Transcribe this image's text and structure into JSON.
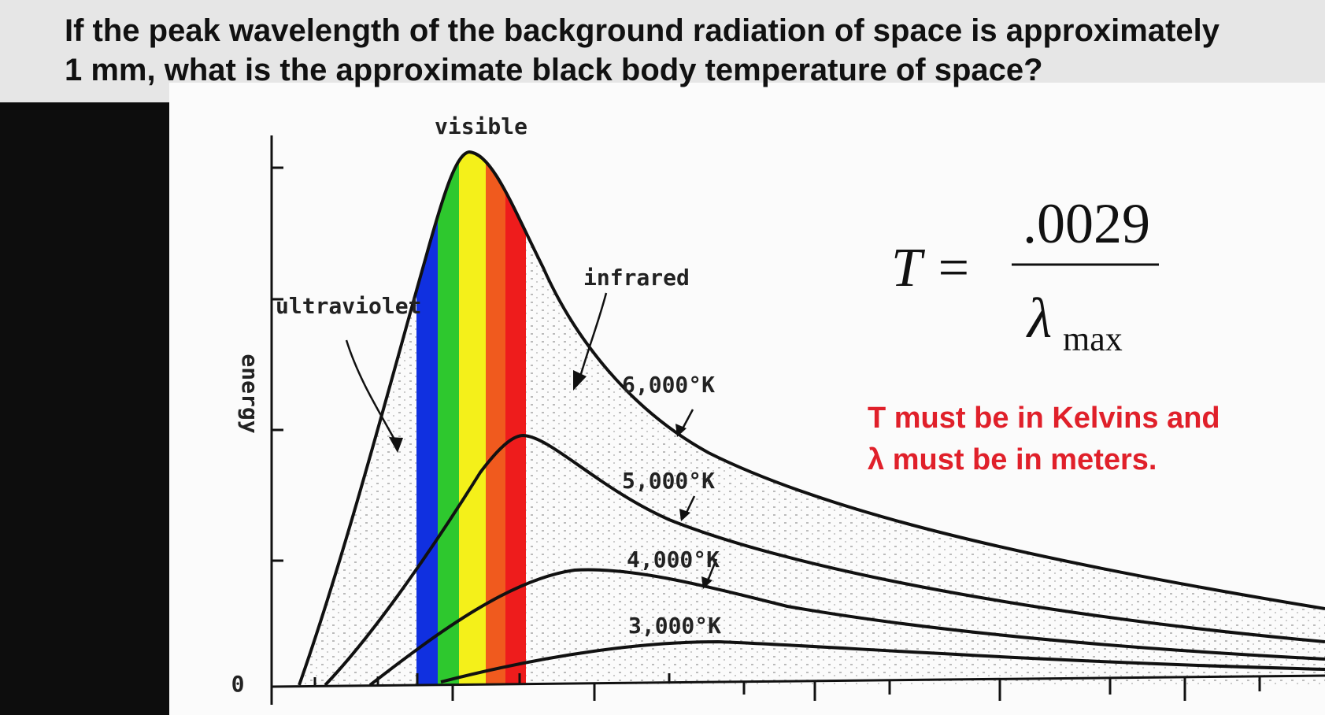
{
  "question": {
    "lines": [
      "If the peak wavelength of the background radiation of space is approximately",
      "1 mm, what is the approximate black body temperature of space?"
    ]
  },
  "diagram": {
    "band_label": "visible",
    "infrared_label": "infrared",
    "ultraviolet_label": "ultraviolet",
    "y_axis_label": "energy",
    "origin_label": "0",
    "curves": [
      {
        "label": "6,000°K"
      },
      {
        "label": "5,000°K"
      },
      {
        "label": "4,000°K"
      },
      {
        "label": "3,000°K"
      }
    ]
  },
  "formula": {
    "lhs": "T =",
    "numerator": ".0029",
    "denominator": "λ",
    "subscript": "max"
  },
  "note": {
    "lines": [
      "T must be in Kelvins and",
      "λ must be in meters."
    ]
  }
}
